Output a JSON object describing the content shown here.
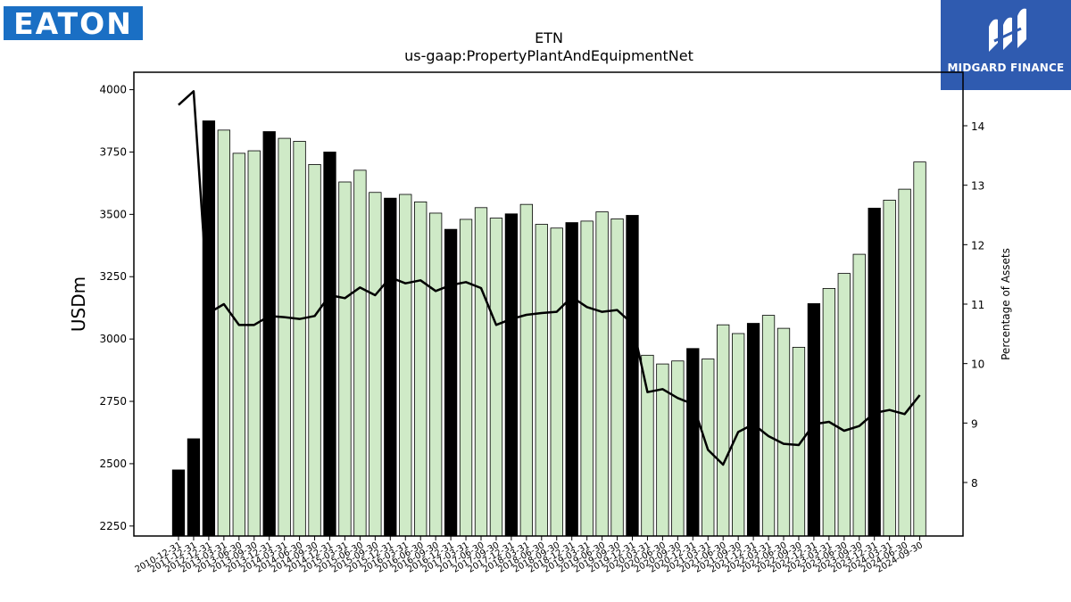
{
  "logos": {
    "left_text": "EATON",
    "right_text": "MIDGARD FINANCE"
  },
  "chart_data": {
    "type": "bar",
    "title": "ETN",
    "subtitle": "us-gaap:PropertyPlantAndEquipmentNet",
    "ylabel": "USDm",
    "y2label": "Percentage of Assets",
    "ylim": [
      2210,
      4070
    ],
    "y2lim": [
      7.1,
      14.9
    ],
    "yticks": [
      2250,
      2500,
      2750,
      3000,
      3250,
      3500,
      3750,
      4000
    ],
    "y2ticks": [
      8,
      9,
      10,
      11,
      12,
      13,
      14
    ],
    "colors": {
      "annual_bar": "#000000",
      "quarter_bar": "#cfeac7",
      "line": "#000000",
      "edge": "#000000"
    },
    "categories": [
      "2010-12-31",
      "2011-12-31",
      "2012-12-31",
      "2013-03-31",
      "2013-06-30",
      "2013-09-30",
      "2013-12-31",
      "2014-03-31",
      "2014-06-30",
      "2014-09-30",
      "2014-12-31",
      "2015-03-31",
      "2015-06-30",
      "2015-09-30",
      "2015-12-31",
      "2016-03-31",
      "2016-06-30",
      "2016-09-30",
      "2016-12-31",
      "2017-03-31",
      "2017-06-30",
      "2017-09-30",
      "2017-12-31",
      "2018-03-31",
      "2018-06-30",
      "2018-09-30",
      "2018-12-31",
      "2019-03-31",
      "2019-06-30",
      "2019-09-30",
      "2019-12-31",
      "2020-03-31",
      "2020-06-30",
      "2020-09-30",
      "2020-12-31",
      "2021-03-31",
      "2021-06-30",
      "2021-09-30",
      "2021-12-31",
      "2022-03-31",
      "2022-06-30",
      "2022-09-30",
      "2022-12-31",
      "2023-03-31",
      "2023-06-30",
      "2023-09-30",
      "2023-12-31",
      "2024-03-31",
      "2024-06-30",
      "2024-09-30"
    ],
    "series": [
      {
        "values": [
          2475,
          2600,
          3875,
          3838,
          3745,
          3755,
          3832,
          3805,
          3793,
          3700,
          3750,
          3630,
          3677,
          3588,
          3565,
          3580,
          3550,
          3505,
          3440,
          3480,
          3527,
          3485,
          3502,
          3540,
          3460,
          3445,
          3467,
          3473,
          3510,
          3482,
          3496,
          2935,
          2900,
          2912,
          2962,
          2920,
          3057,
          3022,
          3063,
          3095,
          3043,
          2967,
          3142,
          3203,
          3263,
          3340,
          3525,
          3557,
          3601,
          3710
        ],
        "annual": [
          true,
          true,
          true,
          false,
          false,
          false,
          true,
          false,
          false,
          false,
          true,
          false,
          false,
          false,
          true,
          false,
          false,
          false,
          true,
          false,
          false,
          false,
          true,
          false,
          false,
          false,
          true,
          false,
          false,
          false,
          true,
          false,
          false,
          false,
          true,
          false,
          false,
          false,
          true,
          false,
          false,
          false,
          true,
          false,
          false,
          false,
          true,
          false,
          false,
          false
        ]
      },
      {
        "axis": "right",
        "values": [
          14.35,
          14.58,
          10.85,
          11.0,
          10.65,
          10.65,
          10.8,
          10.78,
          10.75,
          10.8,
          11.15,
          11.1,
          11.28,
          11.15,
          11.45,
          11.35,
          11.4,
          11.22,
          11.32,
          11.37,
          11.27,
          10.65,
          10.75,
          10.82,
          10.85,
          10.87,
          11.12,
          10.95,
          10.87,
          10.9,
          10.67,
          9.52,
          9.57,
          9.42,
          9.32,
          8.55,
          8.3,
          8.85,
          8.98,
          8.78,
          8.65,
          8.63,
          8.98,
          9.02,
          8.87,
          8.95,
          9.17,
          9.22,
          9.15,
          9.47
        ]
      }
    ]
  }
}
